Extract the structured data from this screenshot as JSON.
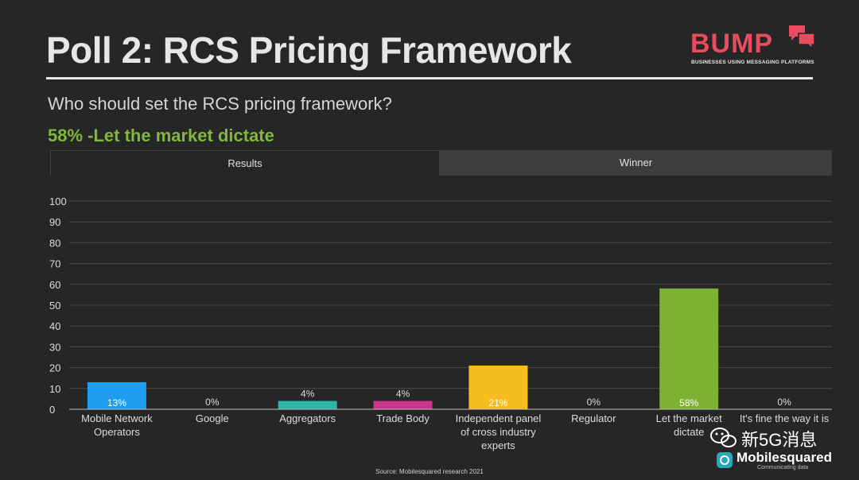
{
  "slide": {
    "title": "Poll 2: RCS Pricing Framework",
    "question": "Who should set the RCS pricing framework?",
    "result": "58% -Let the market dictate",
    "source": "Source: Mobilesquared research 2021"
  },
  "logo": {
    "name": "BUMP",
    "tagline": "BUSINESSES USING MESSAGING PLATFORMS",
    "icon": "chat-bubbles-icon",
    "color": "#e84c5d"
  },
  "tabs": [
    {
      "label": "Results",
      "active": true
    },
    {
      "label": "Winner",
      "active": false
    }
  ],
  "watermark": {
    "text": "新5G消息",
    "brand": "Mobilesquared",
    "tagline": "Communicating data"
  },
  "chart_data": {
    "type": "bar",
    "categories": [
      "Mobile Network Operators",
      "Google",
      "Aggregators",
      "Trade Body",
      "Independent panel of cross industry experts",
      "Regulator",
      "Let the market dictate",
      "It's fine the way it is"
    ],
    "category_lines": [
      [
        "Mobile Network",
        "Operators"
      ],
      [
        "Google"
      ],
      [
        "Aggregators"
      ],
      [
        "Trade Body"
      ],
      [
        "Independent panel",
        "of cross industry",
        "experts"
      ],
      [
        "Regulator"
      ],
      [
        "Let the market",
        "dictate"
      ],
      [
        "It's fine the way it is"
      ]
    ],
    "values": [
      13,
      0,
      4,
      4,
      21,
      0,
      58,
      0
    ],
    "data_labels": [
      "13%",
      "0%",
      "4%",
      "4%",
      "21%",
      "0%",
      "58%",
      "0%"
    ],
    "colors": [
      "#1e9ef0",
      "#aaaaaa",
      "#2fb5a5",
      "#c9378d",
      "#f6bd21",
      "#aaaaaa",
      "#7cb133",
      "#aaaaaa"
    ],
    "ylim": [
      0,
      100
    ],
    "yticks": [
      0,
      10,
      20,
      30,
      40,
      50,
      60,
      70,
      80,
      90,
      100
    ],
    "grid": true,
    "title": "",
    "xlabel": "",
    "ylabel": ""
  }
}
